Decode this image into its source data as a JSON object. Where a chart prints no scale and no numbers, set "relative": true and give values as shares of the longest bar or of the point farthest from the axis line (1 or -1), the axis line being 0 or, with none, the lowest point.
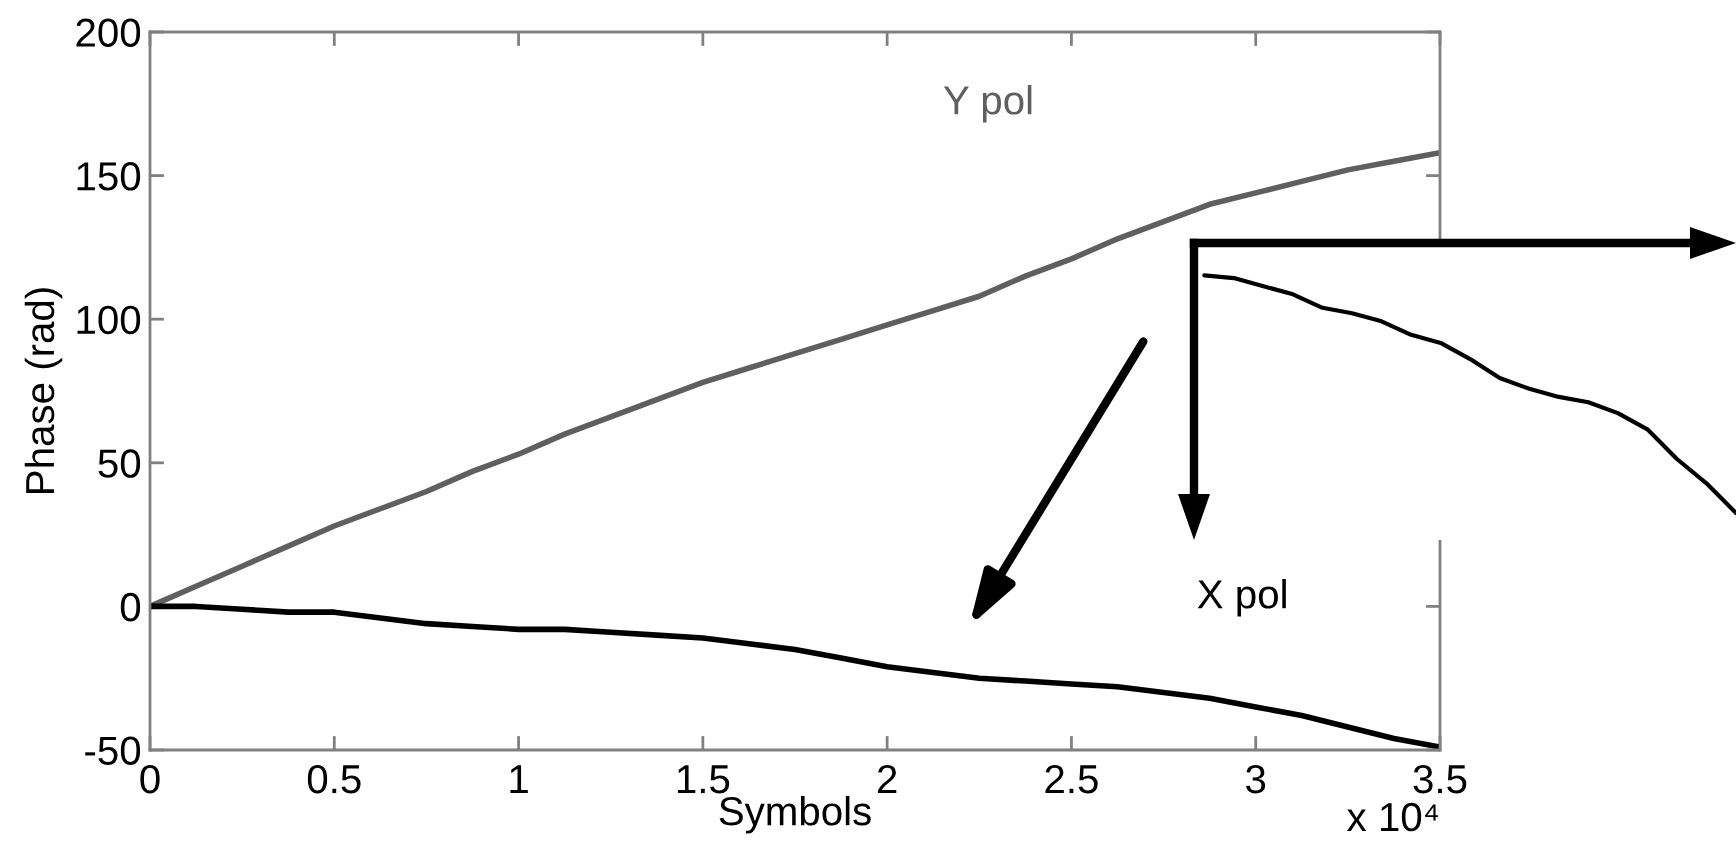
{
  "chart_data": [
    {
      "type": "line",
      "xlabel": "Symbols",
      "ylabel": "Phase (rad)",
      "x": [
        0,
        0.125,
        0.25,
        0.375,
        0.5,
        0.625,
        0.75,
        0.875,
        1,
        1.125,
        1.25,
        1.375,
        1.5,
        1.625,
        1.75,
        1.875,
        2,
        2.125,
        2.25,
        2.375,
        2.5,
        2.625,
        2.75,
        2.875,
        3,
        3.125,
        3.25,
        3.375,
        3.5
      ],
      "series": [
        {
          "name": "Y pol",
          "color": "#5f5f5f",
          "values": [
            0,
            7,
            14,
            21,
            28,
            34,
            40,
            47,
            53,
            60,
            66,
            72,
            78,
            83,
            88,
            93,
            98,
            103,
            108,
            115,
            121,
            128,
            134,
            140,
            144,
            148,
            152,
            155,
            158
          ]
        },
        {
          "name": "X pol",
          "color": "#000000",
          "values": [
            0,
            0,
            -1,
            -2,
            -2,
            -4,
            -6,
            -7,
            -8,
            -8,
            -9,
            -10,
            -11,
            -13,
            -15,
            -18,
            -21,
            -23,
            -25,
            -26,
            -27,
            -28,
            -30,
            -32,
            -35,
            -38,
            -42,
            -46,
            -49
          ]
        }
      ],
      "xlim": [
        0,
        3.5
      ],
      "ylim": [
        -50,
        200
      ],
      "xticks": [
        0,
        0.5,
        1,
        1.5,
        2,
        2.5,
        3,
        3.5
      ],
      "yticks": [
        -50,
        0,
        50,
        100,
        150,
        200
      ],
      "annotations": [
        "x 10⁴"
      ]
    },
    {
      "type": "line",
      "relative": true,
      "categories": [
        null,
        null,
        null,
        null,
        null,
        null,
        null,
        null,
        null,
        null,
        null,
        null,
        null,
        null,
        null,
        null,
        null,
        null,
        null
      ],
      "series": [
        {
          "color": "#000000",
          "values": [
            -0.12,
            -0.13,
            -0.16,
            -0.19,
            -0.24,
            -0.26,
            -0.29,
            -0.34,
            -0.37,
            -0.43,
            -0.5,
            -0.54,
            -0.57,
            -0.59,
            -0.63,
            -0.69,
            -0.8,
            -0.89,
            -1
          ]
        }
      ]
    }
  ]
}
